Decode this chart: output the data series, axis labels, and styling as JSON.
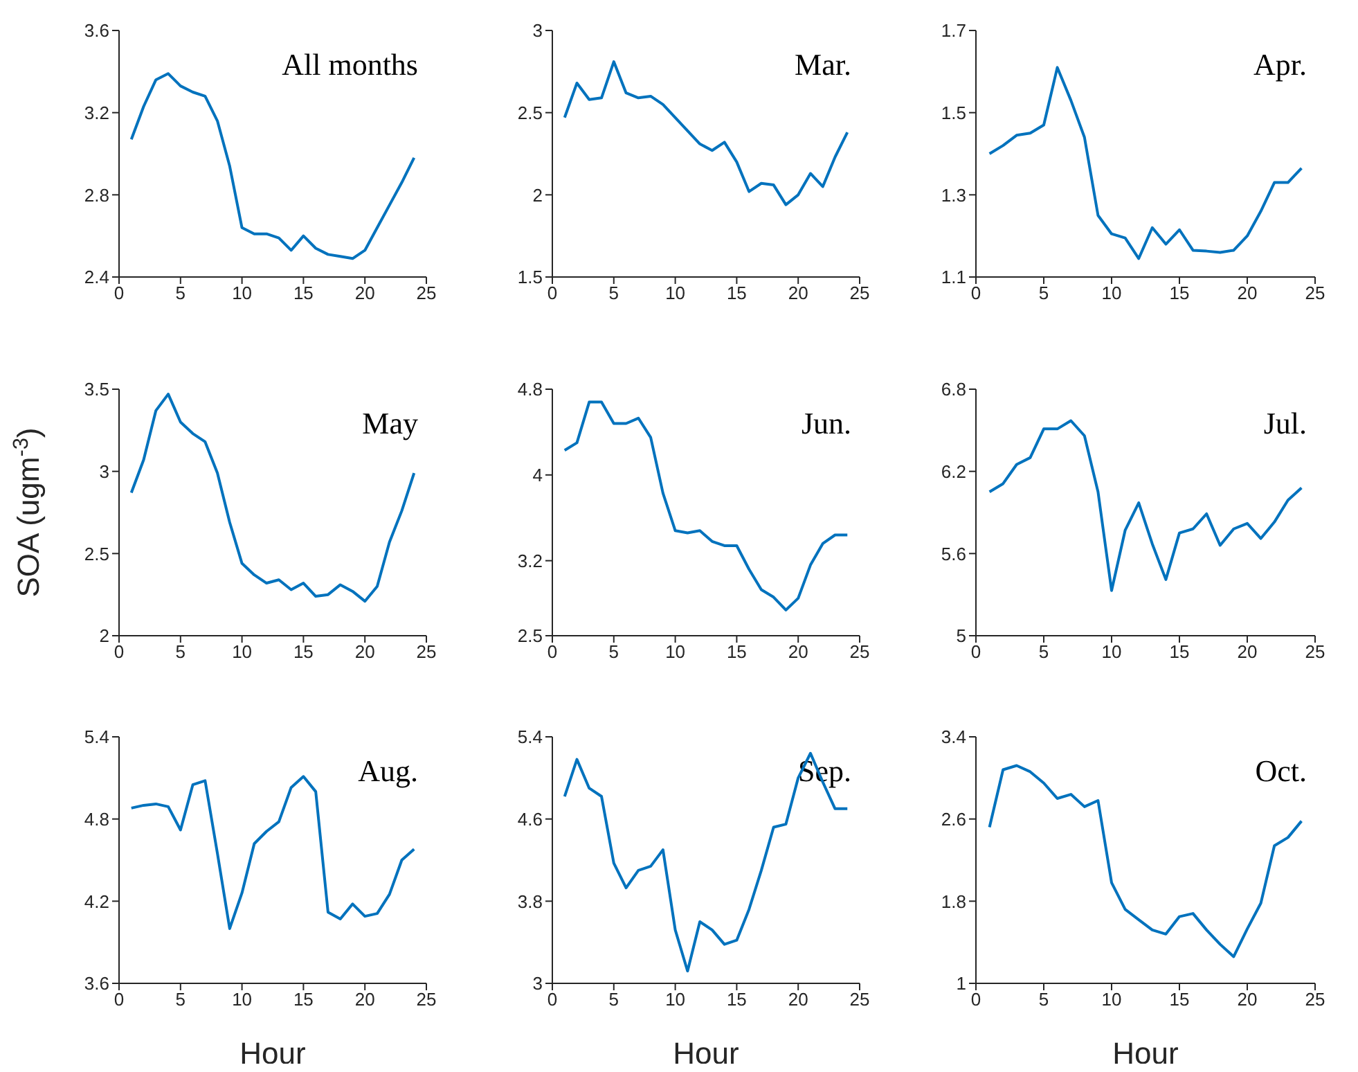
{
  "chart_data": [
    {
      "type": "line",
      "title": "All months",
      "x": [
        1,
        2,
        3,
        4,
        5,
        6,
        7,
        8,
        9,
        10,
        11,
        12,
        13,
        14,
        15,
        16,
        17,
        18,
        19,
        20,
        21,
        22,
        23,
        24
      ],
      "series": [
        {
          "color": "#0072bd",
          "values": [
            3.07,
            3.23,
            3.36,
            3.39,
            3.33,
            3.3,
            3.28,
            3.16,
            2.94,
            2.64,
            2.61,
            2.61,
            2.59,
            2.53,
            2.6,
            2.54,
            2.51,
            2.5,
            2.49,
            2.53,
            2.64,
            2.75,
            2.86,
            2.98
          ]
        }
      ],
      "xlim": [
        0,
        25
      ],
      "xticks": [
        0,
        5,
        10,
        15,
        20,
        25
      ],
      "ylim": [
        2.4,
        3.6
      ],
      "yticks": [
        2.4,
        2.8,
        3.2,
        3.6
      ],
      "grid": false,
      "legend": false
    },
    {
      "type": "line",
      "title": "Mar.",
      "x": [
        1,
        2,
        3,
        4,
        5,
        6,
        7,
        8,
        9,
        10,
        11,
        12,
        13,
        14,
        15,
        16,
        17,
        18,
        19,
        20,
        21,
        22,
        23,
        24
      ],
      "series": [
        {
          "color": "#0072bd",
          "values": [
            2.47,
            2.68,
            2.58,
            2.59,
            2.81,
            2.62,
            2.59,
            2.6,
            2.55,
            2.47,
            2.39,
            2.31,
            2.27,
            2.32,
            2.2,
            2.02,
            2.07,
            2.06,
            1.94,
            2.0,
            2.13,
            2.05,
            2.23,
            2.38
          ]
        }
      ],
      "xlim": [
        0,
        25
      ],
      "xticks": [
        0,
        5,
        10,
        15,
        20,
        25
      ],
      "ylim": [
        1.5,
        3
      ],
      "yticks": [
        1.5,
        2,
        2.5,
        3
      ],
      "grid": false,
      "legend": false
    },
    {
      "type": "line",
      "title": "Apr.",
      "x": [
        1,
        2,
        3,
        4,
        5,
        6,
        7,
        8,
        9,
        10,
        11,
        12,
        13,
        14,
        15,
        16,
        17,
        18,
        19,
        20,
        21,
        22,
        23,
        24
      ],
      "series": [
        {
          "color": "#0072bd",
          "values": [
            1.4,
            1.42,
            1.445,
            1.45,
            1.47,
            1.61,
            1.53,
            1.44,
            1.25,
            1.205,
            1.195,
            1.145,
            1.22,
            1.18,
            1.215,
            1.165,
            1.163,
            1.16,
            1.165,
            1.2,
            1.26,
            1.33,
            1.33,
            1.365
          ]
        }
      ],
      "xlim": [
        0,
        25
      ],
      "xticks": [
        0,
        5,
        10,
        15,
        20,
        25
      ],
      "ylim": [
        1.1,
        1.7
      ],
      "yticks": [
        1.1,
        1.3,
        1.5,
        1.7
      ],
      "grid": false,
      "legend": false
    },
    {
      "type": "line",
      "title": "May",
      "ylabel": "SOA (ugm$^{-3}$)",
      "x": [
        1,
        2,
        3,
        4,
        5,
        6,
        7,
        8,
        9,
        10,
        11,
        12,
        13,
        14,
        15,
        16,
        17,
        18,
        19,
        20,
        21,
        22,
        23,
        24
      ],
      "series": [
        {
          "color": "#0072bd",
          "values": [
            2.87,
            3.07,
            3.37,
            3.47,
            3.3,
            3.23,
            3.18,
            2.99,
            2.69,
            2.44,
            2.37,
            2.32,
            2.34,
            2.28,
            2.32,
            2.24,
            2.25,
            2.31,
            2.27,
            2.21,
            2.3,
            2.57,
            2.76,
            2.99
          ]
        }
      ],
      "xlim": [
        0,
        25
      ],
      "xticks": [
        0,
        5,
        10,
        15,
        20,
        25
      ],
      "ylim": [
        2,
        3.5
      ],
      "yticks": [
        2,
        2.5,
        3,
        3.5
      ],
      "grid": false,
      "legend": false
    },
    {
      "type": "line",
      "title": "Jun.",
      "x": [
        1,
        2,
        3,
        4,
        5,
        6,
        7,
        8,
        9,
        10,
        11,
        12,
        13,
        14,
        15,
        16,
        17,
        18,
        19,
        20,
        21,
        22,
        23,
        24
      ],
      "series": [
        {
          "color": "#0072bd",
          "values": [
            4.23,
            4.3,
            4.68,
            4.68,
            4.48,
            4.48,
            4.53,
            4.35,
            3.83,
            3.48,
            3.46,
            3.48,
            3.38,
            3.34,
            3.34,
            3.12,
            2.93,
            2.86,
            2.74,
            2.85,
            3.16,
            3.36,
            3.44,
            3.44
          ]
        }
      ],
      "xlim": [
        0,
        25
      ],
      "xticks": [
        0,
        5,
        10,
        15,
        20,
        25
      ],
      "ylim": [
        2.5,
        4.8
      ],
      "yticks": [
        2.5,
        3.2,
        4,
        4.8
      ],
      "grid": false,
      "legend": false
    },
    {
      "type": "line",
      "title": "Jul.",
      "x": [
        1,
        2,
        3,
        4,
        5,
        6,
        7,
        8,
        9,
        10,
        11,
        12,
        13,
        14,
        15,
        16,
        17,
        18,
        19,
        20,
        21,
        22,
        23,
        24
      ],
      "series": [
        {
          "color": "#0072bd",
          "values": [
            6.05,
            6.11,
            6.25,
            6.3,
            6.51,
            6.51,
            6.57,
            6.46,
            6.05,
            5.33,
            5.77,
            5.97,
            5.67,
            5.41,
            5.75,
            5.78,
            5.89,
            5.66,
            5.78,
            5.82,
            5.71,
            5.83,
            5.99,
            6.08
          ]
        }
      ],
      "xlim": [
        0,
        25
      ],
      "xticks": [
        0,
        5,
        10,
        15,
        20,
        25
      ],
      "ylim": [
        5,
        6.8
      ],
      "yticks": [
        5,
        5.6,
        6.2,
        6.8
      ],
      "grid": false,
      "legend": false
    },
    {
      "type": "line",
      "title": "Aug.",
      "xlabel": "Hour",
      "x": [
        1,
        2,
        3,
        4,
        5,
        6,
        7,
        8,
        9,
        10,
        11,
        12,
        13,
        14,
        15,
        16,
        17,
        18,
        19,
        20,
        21,
        22,
        23,
        24
      ],
      "series": [
        {
          "color": "#0072bd",
          "values": [
            4.88,
            4.9,
            4.91,
            4.89,
            4.72,
            5.05,
            5.08,
            4.55,
            4.0,
            4.26,
            4.62,
            4.71,
            4.78,
            5.03,
            5.11,
            5.0,
            4.12,
            4.07,
            4.18,
            4.09,
            4.11,
            4.25,
            4.5,
            4.58
          ]
        }
      ],
      "xlim": [
        0,
        25
      ],
      "xticks": [
        0,
        5,
        10,
        15,
        20,
        25
      ],
      "ylim": [
        3.6,
        5.4
      ],
      "yticks": [
        3.6,
        4.2,
        4.8,
        5.4
      ],
      "grid": false,
      "legend": false
    },
    {
      "type": "line",
      "title": "Sep.",
      "xlabel": "Hour",
      "x": [
        1,
        2,
        3,
        4,
        5,
        6,
        7,
        8,
        9,
        10,
        11,
        12,
        13,
        14,
        15,
        16,
        17,
        18,
        19,
        20,
        21,
        22,
        23,
        24
      ],
      "series": [
        {
          "color": "#0072bd",
          "values": [
            4.82,
            5.18,
            4.9,
            4.82,
            4.17,
            3.93,
            4.1,
            4.14,
            4.3,
            3.52,
            3.12,
            3.6,
            3.52,
            3.38,
            3.42,
            3.72,
            4.1,
            4.52,
            4.55,
            5.0,
            5.24,
            4.96,
            4.7,
            4.7
          ]
        }
      ],
      "xlim": [
        0,
        25
      ],
      "xticks": [
        0,
        5,
        10,
        15,
        20,
        25
      ],
      "ylim": [
        3,
        5.4
      ],
      "yticks": [
        3,
        3.8,
        4.6,
        5.4
      ],
      "grid": false,
      "legend": false
    },
    {
      "type": "line",
      "title": "Oct.",
      "xlabel": "Hour",
      "x": [
        1,
        2,
        3,
        4,
        5,
        6,
        7,
        8,
        9,
        10,
        11,
        12,
        13,
        14,
        15,
        16,
        17,
        18,
        19,
        20,
        21,
        22,
        23,
        24
      ],
      "series": [
        {
          "color": "#0072bd",
          "values": [
            2.52,
            3.08,
            3.12,
            3.06,
            2.95,
            2.8,
            2.84,
            2.72,
            2.78,
            1.98,
            1.72,
            1.62,
            1.52,
            1.48,
            1.65,
            1.68,
            1.52,
            1.38,
            1.26,
            1.53,
            1.78,
            2.34,
            2.42,
            2.58
          ]
        }
      ],
      "xlim": [
        0,
        25
      ],
      "xticks": [
        0,
        5,
        10,
        15,
        20,
        25
      ],
      "ylim": [
        1,
        3.4
      ],
      "yticks": [
        1,
        1.8,
        2.6,
        3.4
      ],
      "grid": false,
      "legend": false
    }
  ]
}
